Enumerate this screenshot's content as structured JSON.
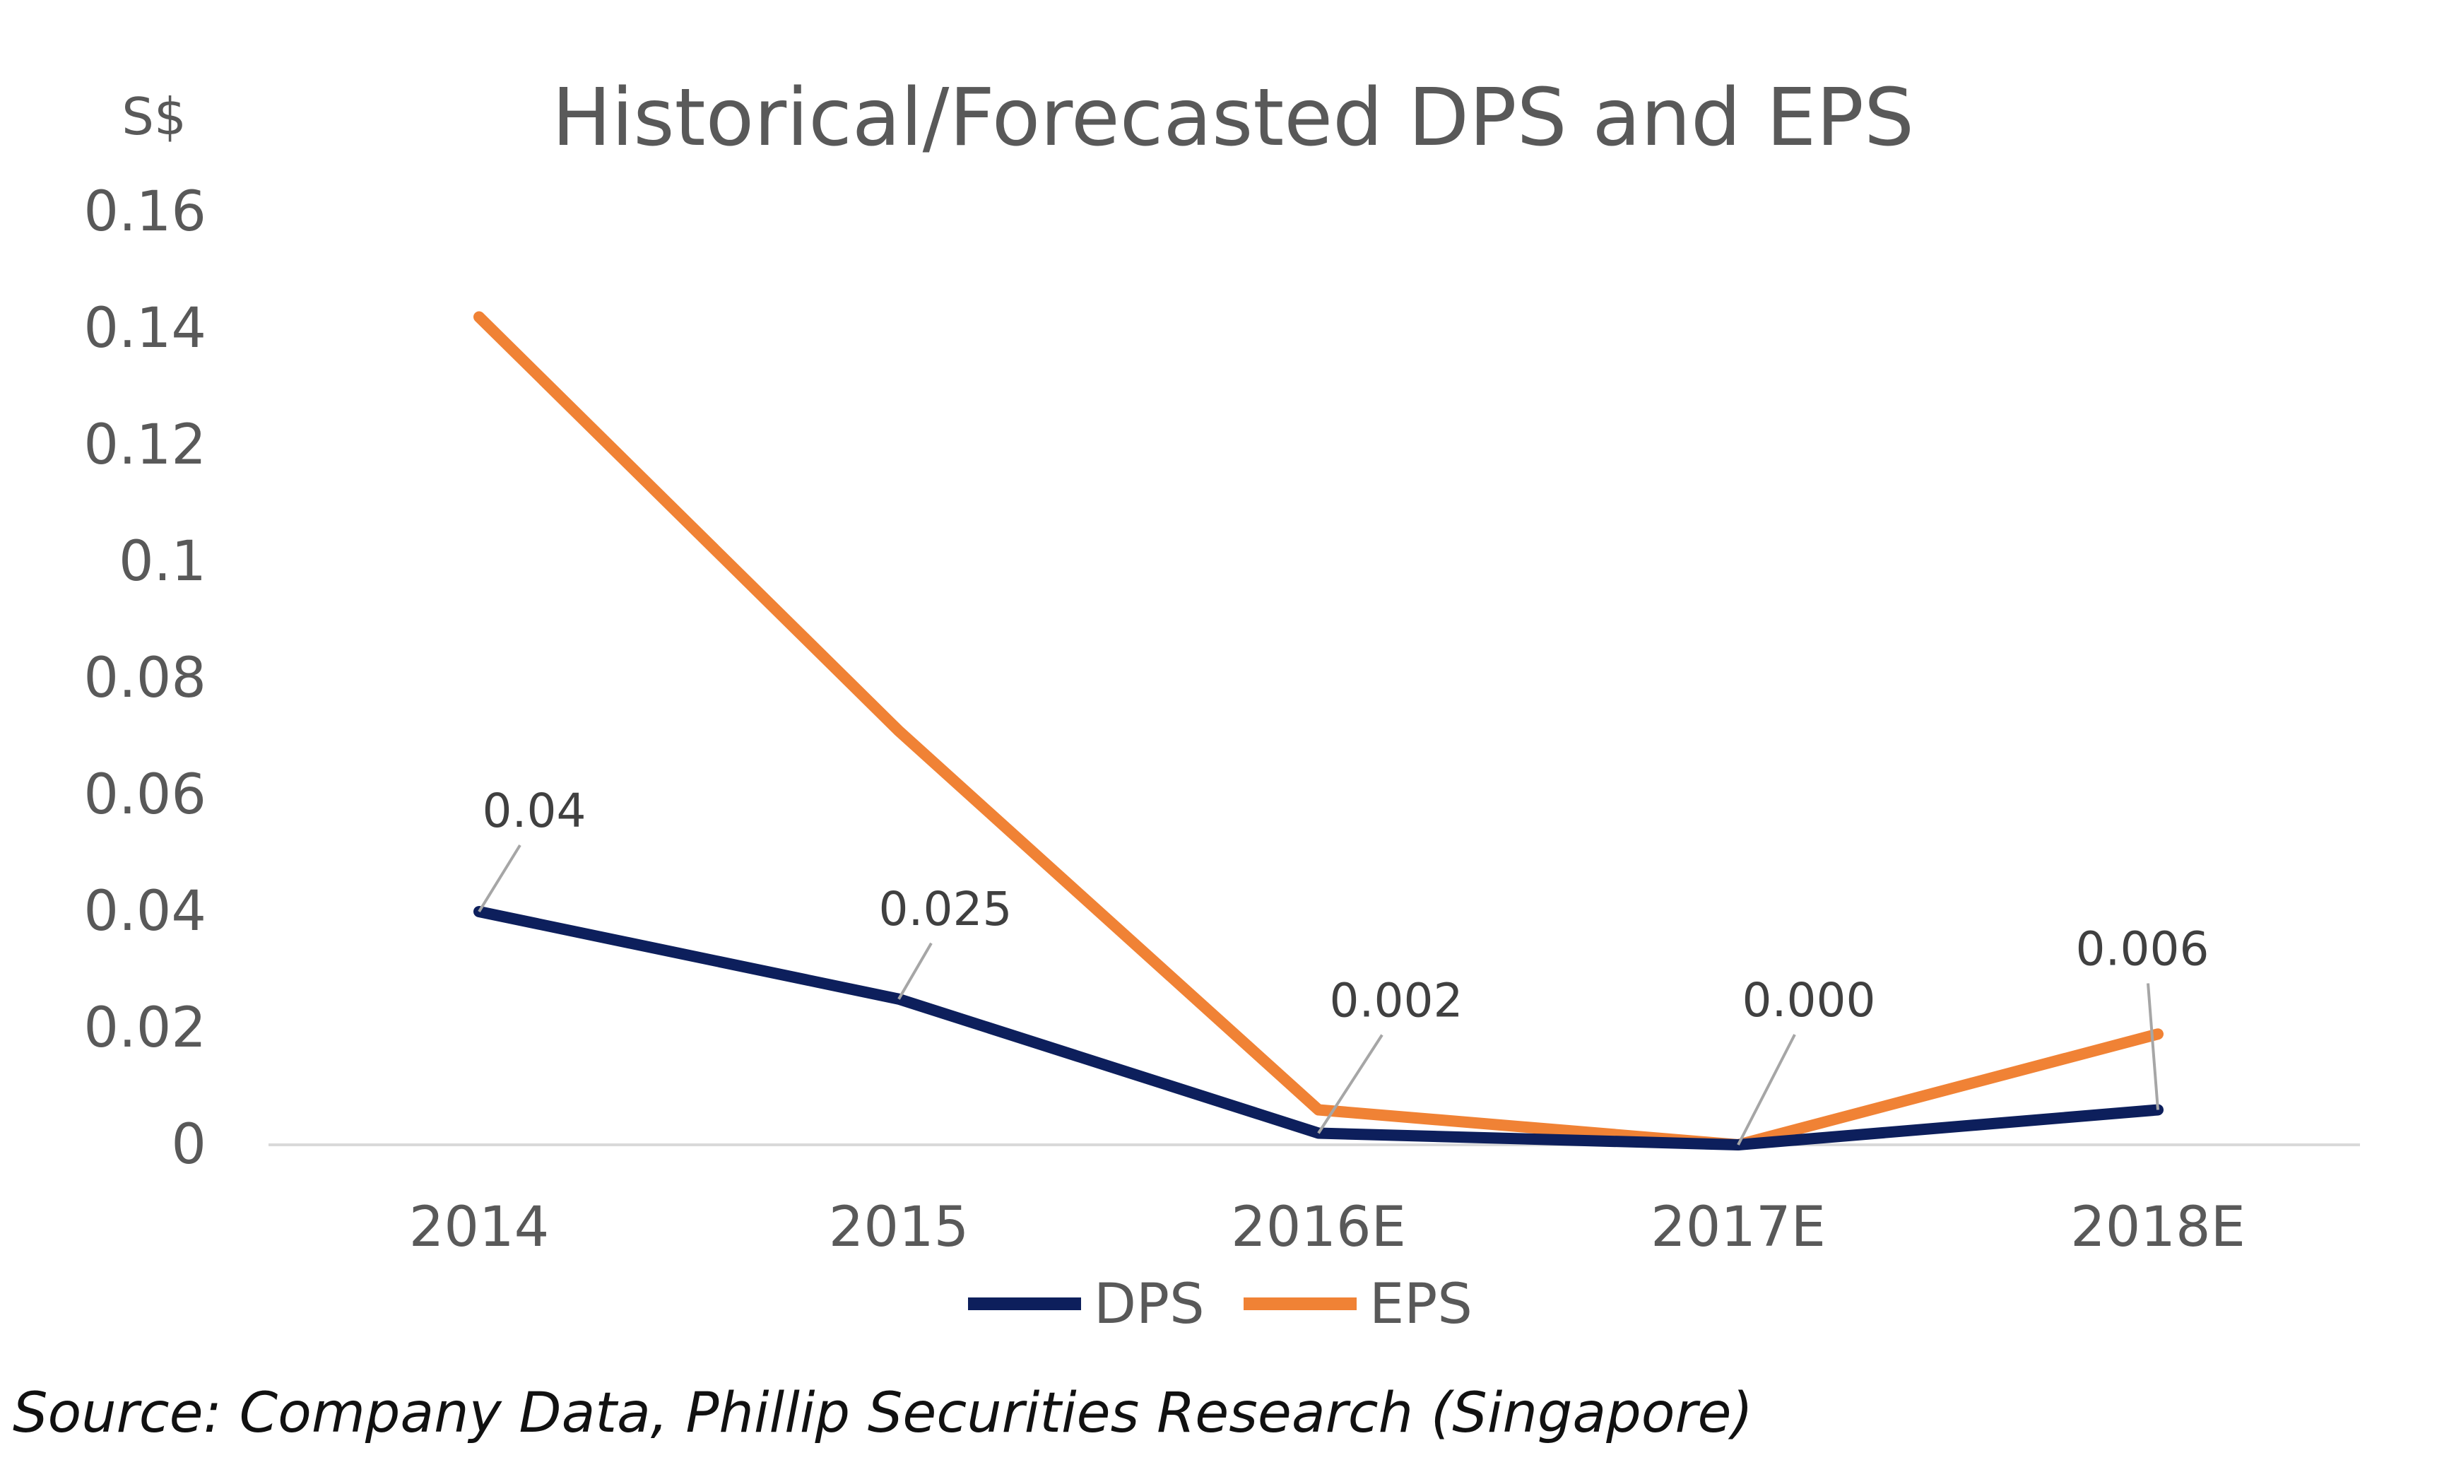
{
  "source_note": "Source: Company Data, Phillip Securities Research (Singapore)",
  "chart_data": {
    "type": "line",
    "title": "Historical/Forecasted DPS and EPS",
    "y_unit": "S$",
    "xlabel": "",
    "ylabel": "",
    "categories": [
      "2014",
      "2015",
      "2016E",
      "2017E",
      "2018E"
    ],
    "ylim": [
      0,
      0.16
    ],
    "yticks": [
      0,
      0.02,
      0.04,
      0.06,
      0.08,
      0.1,
      0.12,
      0.14,
      0.16
    ],
    "ytick_labels": [
      "0",
      "0.02",
      "0.04",
      "0.06",
      "0.08",
      "0.1",
      "0.12",
      "0.14",
      "0.16"
    ],
    "grid": false,
    "legend_position": "bottom",
    "series": [
      {
        "name": "DPS",
        "color": "#0d1f5c",
        "values": [
          0.04,
          0.025,
          0.002,
          0.0,
          0.006
        ],
        "data_labels": [
          "0.04",
          "0.025",
          "0.002",
          "0.000",
          "0.006"
        ]
      },
      {
        "name": "EPS",
        "color": "#f08235",
        "values": [
          0.142,
          0.071,
          0.006,
          0.0,
          0.019
        ]
      }
    ]
  }
}
